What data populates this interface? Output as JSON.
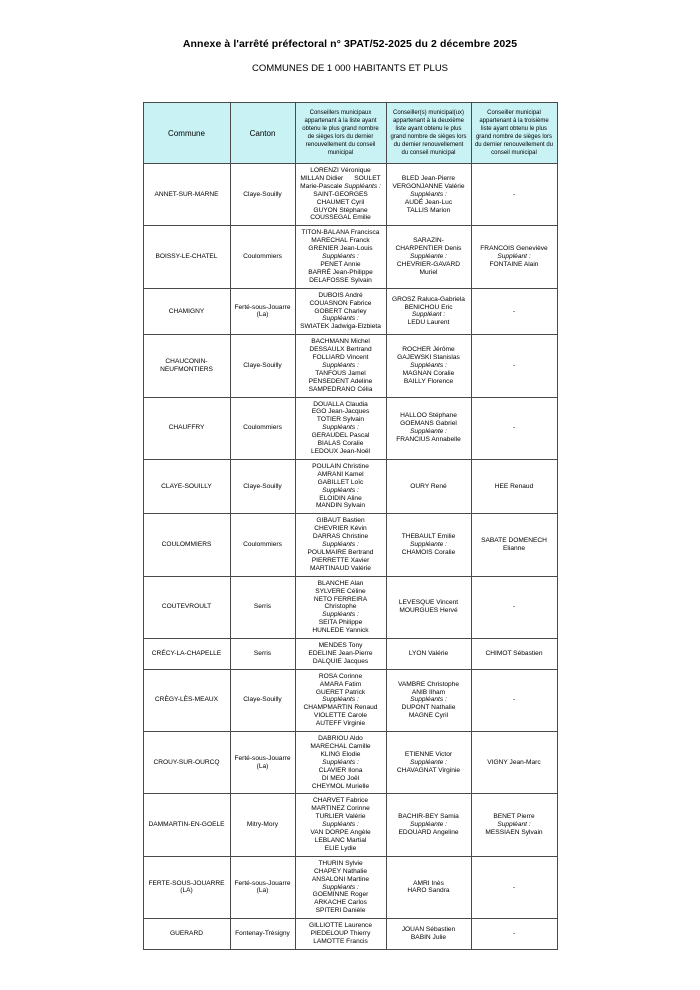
{
  "page": {
    "title": "Annexe à l'arrêté préfectoral n° 3PAT/52-2025 du 2 décembre 2025",
    "subtitle": "COMMUNES DE 1 000 HABITANTS ET PLUS"
  },
  "table": {
    "header_bg": "#c9f2f5",
    "columns": [
      "Commune",
      "Canton",
      "Conseillers municipaux appartenant à la liste ayant obtenu le plus grand nombre de sièges lors du dernier renouvellement du conseil municipal",
      "Conseiller(s) municipal(ux) appartenant à la deuxième liste ayant obtenu le plus grand nombre de sièges lors du dernier renouvellement du conseil municipal",
      "Conseiller municipal appartenant à la troisième liste ayant obtenu le plus grand nombre de sièges lors du dernier renouvellement du conseil municipal"
    ],
    "rows": [
      {
        "commune": "ANNET-SUR-MARNE",
        "canton": "Claye-Souilly",
        "list1": [
          "LORENZI Véronique",
          "MILLAN Didier      SOULET",
          "Marie-Pascale Suppléants :",
          "SAINT-GEORGES",
          "CHAUMET Cyril",
          "GUYON Stéphane",
          "COUSSEGAL Emilie"
        ],
        "list2": [
          "BLED Jean-Pierre",
          "VERGONJANNE Valérie",
          "Suppléants :",
          "AUDÉ Jean-Luc",
          "TALLIS Marion"
        ],
        "list3": [
          "-"
        ]
      },
      {
        "commune": "BOISSY-LE-CHATEL",
        "canton": "Coulommiers",
        "list1": [
          "TITON-BALANA Francisca",
          "MARECHAL Franck",
          "GRENIER Jean-Louis",
          "Suppléants :",
          "PENET Annie",
          "BARRÉ Jean-Philippe",
          "DELAFOSSE Sylvain"
        ],
        "list2": [
          "SARAZIN-",
          "CHARPENTIER Denis",
          "Suppléante :",
          "CHEVRIER-GAVARD",
          "Muriel"
        ],
        "list3": [
          "FRANCOIS Geneviève",
          "Suppléant :",
          "FONTAINE Alain"
        ]
      },
      {
        "commune": "CHAMIGNY",
        "canton": "Ferté-sous-Jouarre (La)",
        "list1": [
          "DUBOIS André",
          "COUASNON Fabrice",
          "GOBERT Charley",
          "Suppléants :",
          "SWIATEK Jadwiga-Elzbieta"
        ],
        "list2": [
          "GROSZ Raluca-Gabriela",
          "BENICHOU Eric",
          "Suppléant :",
          "LEDU Laurent"
        ],
        "list3": [
          "-"
        ]
      },
      {
        "commune": "CHAUCONIN-NEUFMONTIERS",
        "canton": "Claye-Souilly",
        "list1": [
          "BACHMANN Michel",
          "DESSAULX Bertrand",
          "FOLLIARD Vincent",
          "Suppléants :",
          "TANFOUS Jamel",
          "PENSEDENT Adeline",
          "SAMPEDRANO Célia"
        ],
        "list2": [
          "ROCHER Jérôme",
          "GAJEWSKI Stanislas",
          "Suppléants :",
          "MAGNAN Coralie",
          "BAILLY Florence"
        ],
        "list3": [
          "-"
        ]
      },
      {
        "commune": "CHAUFFRY",
        "canton": "Coulommiers",
        "list1": [
          "DOUALLA Claudia",
          "EGO Jean-Jacques",
          "TOTIER Sylvain",
          "Suppléants :",
          "GERAUDEL Pascal",
          "BIALAS Coralie",
          "LEDOUX Jean-Noël"
        ],
        "list2": [
          "HALLOO Stéphane",
          "GOEMANS Gabriel",
          "Suppléante :",
          "FRANCIUS Annabelle"
        ],
        "list3": [
          "-"
        ]
      },
      {
        "commune": "CLAYE-SOUILLY",
        "canton": "Claye-Souilly",
        "list1": [
          "POULAIN Christine",
          "AMRANI Kamel",
          "GABILLET Loïc",
          "Suppléants :",
          "ELOIDIN Aline",
          "MANDIN Sylvain"
        ],
        "list2": [
          "OURY René"
        ],
        "list3": [
          "HEE Renaud"
        ]
      },
      {
        "commune": "COULOMMIERS",
        "canton": "Coulommiers",
        "list1": [
          "GIBAUT Bastien",
          "CHEVRIER Kévin",
          "DARRAS Christine",
          "Suppléants :",
          "POULMAIRE Bertrand",
          "PIERRETTE Xavier",
          "MARTINAUD Valérie"
        ],
        "list2": [
          "THEBAULT Emilie",
          "Suppléante :",
          "CHAMOIS Coralie"
        ],
        "list3": [
          "SABATE DOMENECH",
          "Elianne"
        ]
      },
      {
        "commune": "COUTEVROULT",
        "canton": "Serris",
        "list1": [
          "BLANCHE Alan",
          "SYLVERE Céline",
          "NETO FERREIRA",
          "Christophe",
          "Suppléants :",
          "SEITA Philippe",
          "HUNLEDE Yannick"
        ],
        "list2": [
          "LEVESQUE Vincent",
          "MOURGUES Hervé"
        ],
        "list3": [
          "-"
        ]
      },
      {
        "commune": "CRÉCY-LA-CHAPELLE",
        "canton": "Serris",
        "list1": [
          "MENDES Tony",
          "EDELINE Jean-Pierre",
          "DALQUIE Jacques"
        ],
        "list2": [
          "LYON Valérie"
        ],
        "list3": [
          "CHIMOT Sébastien"
        ]
      },
      {
        "commune": "CRÈGY-LÈS-MEAUX",
        "canton": "Claye-Souilly",
        "list1": [
          "ROSA Corinne",
          "AMARA Fatim",
          "GUERET Patrick",
          "Suppléants :",
          "CHAMPMARTIN Renaud",
          "VIOLETTE Carole",
          "AUTEFF Virginie"
        ],
        "list2": [
          "VAMBRE Christophe",
          "ANIB Ilham",
          "Suppléants :",
          "DUPONT Nathalie",
          "MAGNE Cyril"
        ],
        "list3": [
          "-"
        ]
      },
      {
        "commune": "CROUY-SUR-OURCQ",
        "canton": "Ferté-sous-Jouarre (La)",
        "list1": [
          "DABRIOU Aldo",
          "MARECHAL Camille",
          "KLING Elodie",
          "Suppléants :",
          "CLAVIER Ilona",
          "DI MEO Joël",
          "CHEYMOL Murielle"
        ],
        "list2": [
          "ETIENNE Victor",
          "Suppléante :",
          "CHAVAGNAT Virginie"
        ],
        "list3": [
          "VIGNY Jean-Marc"
        ]
      },
      {
        "commune": "DAMMARTIN-EN-GOELE",
        "canton": "Mitry-Mory",
        "list1": [
          "CHARVET Fabrice",
          "MARTINEZ Corinne",
          "TURLIER Valérie",
          "Suppléants :",
          "VAN DORPE Angèle",
          "LEBLANC Martial",
          "ELIE Lydie"
        ],
        "list2": [
          "BACHIR-BEY Samia",
          "Suppléante :",
          "EDOUARD Angeline"
        ],
        "list3": [
          "BENET Pierre",
          "Suppléant :",
          "MESSIAEN Sylvain"
        ]
      },
      {
        "commune": "FERTE-SOUS-JOUARRE (LA)",
        "canton": "Ferté-sous-Jouarre (La)",
        "list1": [
          "THURIN Sylvie",
          "CHAPEY Nathalie",
          "ANSALONI Martine",
          "Suppléants :",
          "GOEMINNE Roger",
          "ARKACHE Carlos",
          "SPITERI Danièle"
        ],
        "list2": [
          "AMRI Inès",
          "HARO Sandra"
        ],
        "list3": [
          "-"
        ]
      },
      {
        "commune": "GUERARD",
        "canton": "Fontenay-Trésigny",
        "list1": [
          "GILLIOTTE Laurence",
          "PIEDELOUP Thierry",
          "LAMOTTE Francis"
        ],
        "list2": [
          "JOUAN Sébastien",
          "BABIN Julie"
        ],
        "list3": [
          "-"
        ]
      }
    ]
  }
}
